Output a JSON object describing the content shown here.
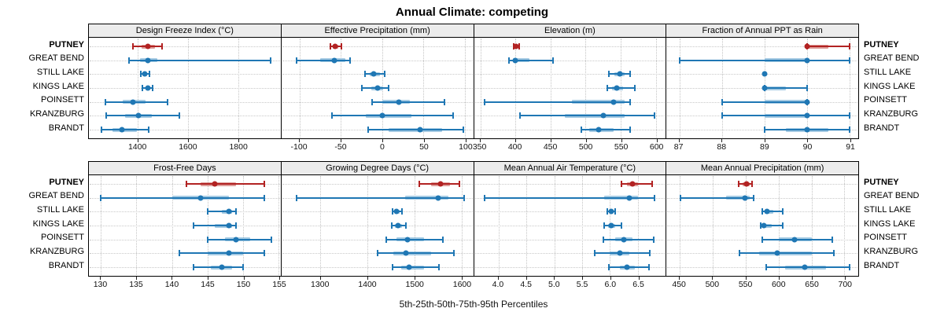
{
  "title": "Annual Climate: competing",
  "footer_label": "5th-25th-50th-75th-95th Percentiles",
  "stations": [
    "PUTNEY",
    "GREAT BEND",
    "STILL LAKE",
    "KINGS LAKE",
    "POINSETT",
    "KRANZBURG",
    "BRANDT"
  ],
  "highlight_station": "PUTNEY",
  "colors": {
    "series_blue": "#1f77b4",
    "series_blue_band": "#a6cbe3",
    "highlight_red": "#b22222",
    "highlight_red_band": "#dd9e9a",
    "strip_bg": "#ececec",
    "grid": "#c4c4c4"
  },
  "chart_data": {
    "type": "scatter",
    "subtype": "percentile-dotplot-trellis",
    "title": "Annual Climate: competing",
    "xlabel": "5th-25th-50th-75th-95th Percentiles",
    "legend_position": "none",
    "grid": "dotted",
    "percentile_labels": [
      "p5",
      "p25",
      "p50",
      "p75",
      "p95"
    ],
    "categories": [
      "PUTNEY",
      "GREAT BEND",
      "STILL LAKE",
      "KINGS LAKE",
      "POINSETT",
      "KRANZBURG",
      "BRANDT"
    ],
    "panels": [
      {
        "title": "Design Freeze Index (°C)",
        "grid_row": 0,
        "grid_col": 0,
        "axis_range": [
          1205,
          1970
        ],
        "ticks": [
          1400,
          1600,
          1800
        ],
        "tick_labels": [
          "1400",
          "1600",
          "1800"
        ],
        "values": {
          "PUTNEY": [
            1380,
            1414,
            1440,
            1469,
            1497
          ],
          "GREAT BEND": [
            1365,
            1408,
            1440,
            1478,
            1930
          ],
          "STILL LAKE": [
            1413,
            1421,
            1428,
            1437,
            1447
          ],
          "KINGS LAKE": [
            1418,
            1430,
            1439,
            1448,
            1458
          ],
          "POINSETT": [
            1270,
            1340,
            1382,
            1430,
            1520
          ],
          "KRANZBURG": [
            1275,
            1350,
            1403,
            1455,
            1565
          ],
          "BRANDT": [
            1255,
            1300,
            1337,
            1395,
            1445
          ]
        }
      },
      {
        "title": "Effective Precipitation (mm)",
        "grid_row": 0,
        "grid_col": 1,
        "axis_range": [
          -122,
          110
        ],
        "ticks": [
          -100,
          -50,
          0,
          50,
          100
        ],
        "tick_labels": [
          "-100",
          "-50",
          "0",
          "50",
          "100"
        ],
        "values": {
          "PUTNEY": [
            -63,
            -60,
            -57,
            -53,
            -49
          ],
          "GREAT BEND": [
            -104,
            -75,
            -58,
            -45,
            -39
          ],
          "STILL LAKE": [
            -21,
            -15,
            -10,
            -3,
            3
          ],
          "KINGS LAKE": [
            -25,
            -13,
            -6,
            1,
            8
          ],
          "POINSETT": [
            -12,
            0,
            20,
            33,
            75
          ],
          "KRANZBURG": [
            -61,
            -20,
            0,
            35,
            86
          ],
          "BRANDT": [
            -17,
            8,
            46,
            72,
            98
          ]
        }
      },
      {
        "title": "Elevation (m)",
        "grid_row": 0,
        "grid_col": 2,
        "axis_range": [
          341,
          614
        ],
        "ticks": [
          350,
          400,
          450,
          500,
          550,
          600
        ],
        "tick_labels": [
          "350",
          "400",
          "450",
          "500",
          "550",
          "600"
        ],
        "values": {
          "PUTNEY": [
            397,
            399,
            401,
            403,
            405
          ],
          "GREAT BEND": [
            391,
            396,
            400,
            420,
            453
          ],
          "STILL LAKE": [
            533,
            541,
            549,
            556,
            563
          ],
          "KINGS LAKE": [
            531,
            538,
            544,
            553,
            570
          ],
          "POINSETT": [
            356,
            480,
            540,
            555,
            563
          ],
          "KRANZBURG": [
            407,
            470,
            525,
            555,
            598
          ],
          "BRANDT": [
            494,
            505,
            518,
            540,
            563
          ]
        }
      },
      {
        "title": "Fraction of Annual PPT as Rain",
        "grid_row": 0,
        "grid_col": 3,
        "axis_range": [
          86.7,
          91.2
        ],
        "ticks": [
          87,
          88,
          89,
          90,
          91
        ],
        "tick_labels": [
          "87",
          "88",
          "89",
          "90",
          "91"
        ],
        "values": {
          "PUTNEY": [
            90,
            90,
            90,
            90.5,
            91
          ],
          "GREAT BEND": [
            87,
            89,
            90,
            90,
            91
          ],
          "STILL LAKE": [
            89,
            89,
            89,
            89,
            89
          ],
          "KINGS LAKE": [
            89,
            89,
            89,
            89.5,
            90
          ],
          "POINSETT": [
            88,
            89,
            90,
            90,
            90
          ],
          "KRANZBURG": [
            88,
            89,
            90,
            90,
            91
          ],
          "BRANDT": [
            89,
            89.5,
            90,
            90.5,
            91
          ]
        }
      },
      {
        "title": "Frost-Free Days",
        "grid_row": 1,
        "grid_col": 0,
        "axis_range": [
          128.3,
          155.3
        ],
        "ticks": [
          130,
          135,
          140,
          145,
          150,
          155
        ],
        "tick_labels": [
          "130",
          "135",
          "140",
          "145",
          "150",
          "155"
        ],
        "values": {
          "PUTNEY": [
            142,
            144,
            146,
            149,
            153
          ],
          "GREAT BEND": [
            130,
            140,
            144,
            148,
            153
          ],
          "STILL LAKE": [
            145,
            147,
            148,
            148.5,
            149
          ],
          "KINGS LAKE": [
            143,
            146,
            148,
            148.5,
            149
          ],
          "POINSETT": [
            145,
            147.5,
            149,
            151,
            154
          ],
          "KRANZBURG": [
            141,
            145,
            148,
            150,
            153
          ],
          "BRANDT": [
            143,
            145.5,
            147,
            148.5,
            150
          ]
        }
      },
      {
        "title": "Growing Degree Days (°C)",
        "grid_row": 1,
        "grid_col": 1,
        "axis_range": [
          1217,
          1625
        ],
        "ticks": [
          1300,
          1400,
          1500,
          1600
        ],
        "tick_labels": [
          "1300",
          "1400",
          "1500",
          "1600"
        ],
        "values": {
          "PUTNEY": [
            1510,
            1535,
            1555,
            1575,
            1595
          ],
          "GREAT BEND": [
            1250,
            1480,
            1551,
            1572,
            1605
          ],
          "STILL LAKE": [
            1453,
            1458,
            1462,
            1468,
            1474
          ],
          "KINGS LAKE": [
            1451,
            1458,
            1465,
            1473,
            1482
          ],
          "POINSETT": [
            1440,
            1462,
            1485,
            1520,
            1560
          ],
          "KRANZBURG": [
            1422,
            1455,
            1482,
            1535,
            1584
          ],
          "BRANDT": [
            1453,
            1472,
            1489,
            1520,
            1553
          ]
        }
      },
      {
        "title": "Mean Annual Air Temperature (°C)",
        "grid_row": 1,
        "grid_col": 2,
        "axis_range": [
          3.56,
          7.0
        ],
        "ticks": [
          4.0,
          4.5,
          5.0,
          5.5,
          6.0,
          6.5
        ],
        "tick_labels": [
          "4.0",
          "4.5",
          "5.0",
          "5.5",
          "6.0",
          "6.5"
        ],
        "values": {
          "PUTNEY": [
            6.2,
            6.3,
            6.4,
            6.5,
            6.75
          ],
          "GREAT BEND": [
            3.75,
            5.9,
            6.35,
            6.5,
            6.8
          ],
          "STILL LAKE": [
            5.95,
            6.0,
            6.02,
            6.05,
            6.1
          ],
          "KINGS LAKE": [
            5.9,
            5.97,
            6.02,
            6.1,
            6.2
          ],
          "POINSETT": [
            5.88,
            6.1,
            6.25,
            6.4,
            6.78
          ],
          "KRANZBURG": [
            5.72,
            6.0,
            6.18,
            6.35,
            6.72
          ],
          "BRANDT": [
            5.98,
            6.18,
            6.3,
            6.45,
            6.7
          ]
        }
      },
      {
        "title": "Mean Annual Precipitation (mm)",
        "grid_row": 1,
        "grid_col": 3,
        "axis_range": [
          430,
          721
        ],
        "ticks": [
          450,
          500,
          550,
          600,
          650,
          700
        ],
        "tick_labels": [
          "450",
          "500",
          "550",
          "600",
          "650",
          "700"
        ],
        "values": {
          "PUTNEY": [
            540,
            546,
            551,
            556,
            560
          ],
          "GREAT BEND": [
            451,
            520,
            549,
            556,
            562
          ],
          "STILL LAKE": [
            575,
            579,
            583,
            592,
            606
          ],
          "KINGS LAKE": [
            573,
            576,
            578,
            590,
            606
          ],
          "POINSETT": [
            575,
            600,
            624,
            650,
            682
          ],
          "KRANZBURG": [
            541,
            570,
            598,
            650,
            684
          ],
          "BRANDT": [
            581,
            610,
            640,
            672,
            708
          ]
        }
      }
    ]
  }
}
